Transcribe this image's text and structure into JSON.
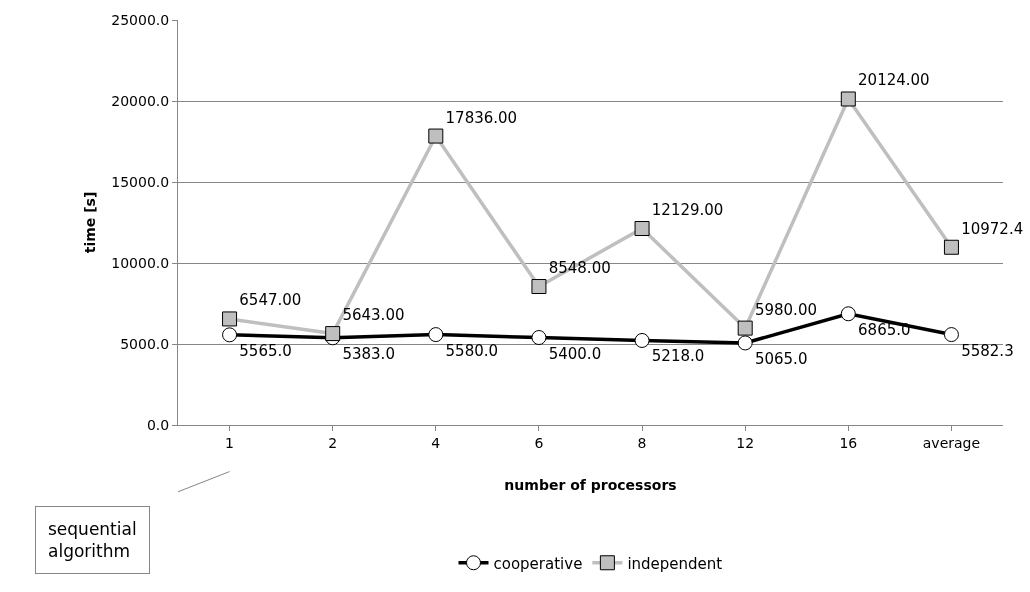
{
  "chart_data": {
    "type": "line",
    "xlabel": "number of processors",
    "ylabel": "time [s]",
    "categories": [
      "1",
      "2",
      "4",
      "6",
      "8",
      "12",
      "16",
      "average"
    ],
    "series": [
      {
        "name": "cooperative",
        "color": "#000000",
        "marker": "circle",
        "values": [
          5565.0,
          5383.0,
          5580.0,
          5400.0,
          5218.0,
          5065.0,
          6865.0,
          5582.3
        ],
        "value_labels": [
          "5565.0",
          "5383.0",
          "5580.0",
          "5400.0",
          "5218.0",
          "5065.0",
          "6865.0",
          "5582.3"
        ]
      },
      {
        "name": "independent",
        "color": "#bfbfbf",
        "marker": "square",
        "values": [
          6547,
          5643,
          17836,
          8548,
          12129,
          5980,
          20124,
          10972.4
        ],
        "value_labels": [
          "6547.00",
          "5643.00",
          "17836.00",
          "8548.00",
          "12129.00",
          "5980.00",
          "20124.00",
          "10972.4"
        ]
      }
    ],
    "ylim": [
      0,
      25000
    ],
    "yticks": [
      {
        "value": 0,
        "label": "0.0"
      },
      {
        "value": 5000,
        "label": "5000.0"
      },
      {
        "value": 10000,
        "label": "10000.0"
      },
      {
        "value": 15000,
        "label": "15000.0"
      },
      {
        "value": 20000,
        "label": "20000.0"
      },
      {
        "value": 25000,
        "label": "25000.0"
      }
    ],
    "grid": "y",
    "legend": "bottom",
    "line_style": "solid",
    "annotations": [
      "sequential algorithm"
    ]
  }
}
